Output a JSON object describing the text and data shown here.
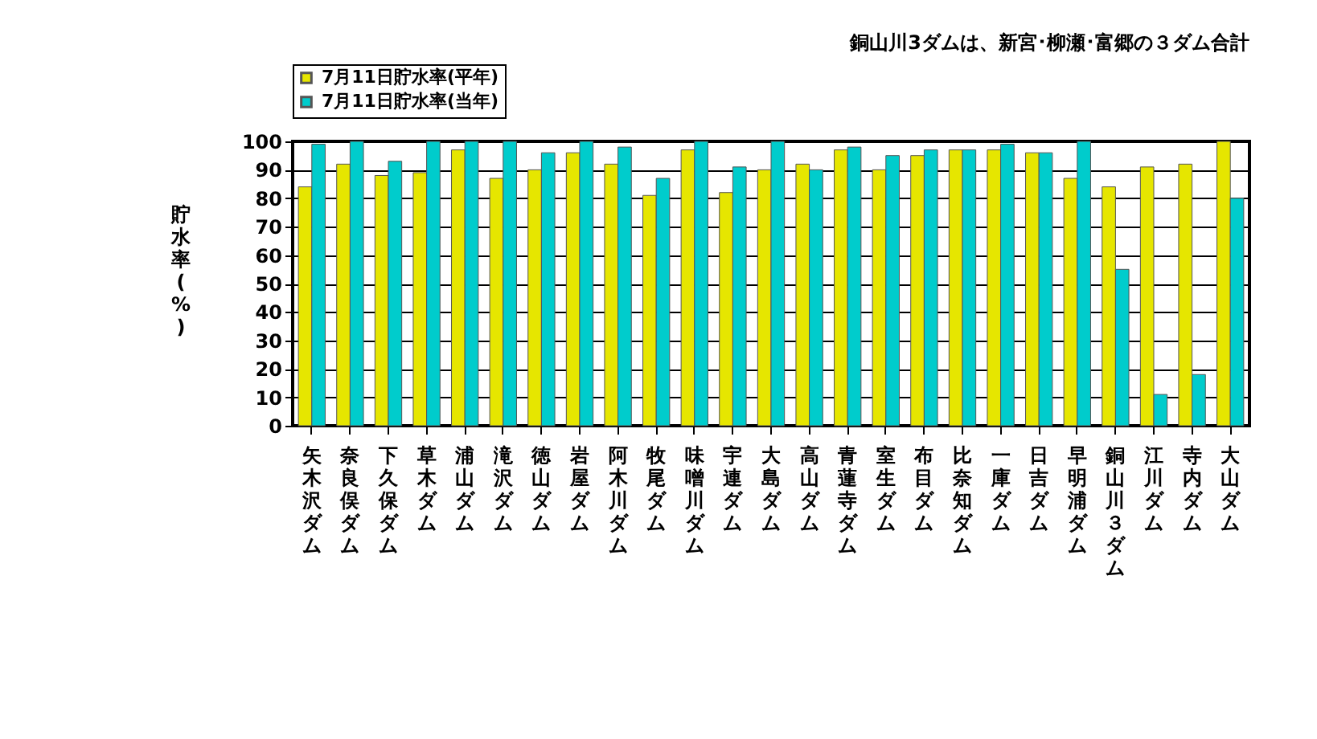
{
  "chart_data": {
    "type": "bar",
    "title": "銅山川3ダムは、新宮･柳瀬･富郷の３ダム合計",
    "ylabel": "貯水率(%)",
    "categories": [
      "矢木沢ダム",
      "奈良俣ダム",
      "下久保ダム",
      "草木ダム",
      "浦山ダム",
      "滝沢ダム",
      "徳山ダム",
      "岩屋ダム",
      "阿木川ダム",
      "牧尾ダム",
      "味噌川ダム",
      "宇連ダム",
      "大島ダム",
      "高山ダム",
      "青蓮寺ダム",
      "室生ダム",
      "布目ダム",
      "比奈知ダム",
      "一庫ダム",
      "日吉ダム",
      "早明浦ダム",
      "銅山川３ダム",
      "江川ダム",
      "寺内ダム",
      "大山ダム"
    ],
    "series": [
      {
        "name": "7月11日貯水率(平年)",
        "color": "#e6e600",
        "values": [
          84,
          92,
          88,
          89,
          97,
          87,
          90,
          96,
          92,
          81,
          97,
          82,
          90,
          92,
          97,
          90,
          95,
          97,
          97,
          96,
          87,
          84,
          91,
          92,
          100
        ]
      },
      {
        "name": "7月11日貯水率(当年)",
        "color": "#00cccc",
        "values": [
          99,
          100,
          93,
          100,
          100,
          100,
          96,
          100,
          98,
          87,
          100,
          91,
          100,
          90,
          98,
          95,
          97,
          97,
          99,
          96,
          100,
          55,
          11,
          18,
          80
        ]
      }
    ],
    "ylim": [
      0,
      100
    ],
    "yticks": [
      0,
      10,
      20,
      30,
      40,
      50,
      60,
      70,
      80,
      90,
      100
    ],
    "grid": "y",
    "legend": "top left"
  }
}
